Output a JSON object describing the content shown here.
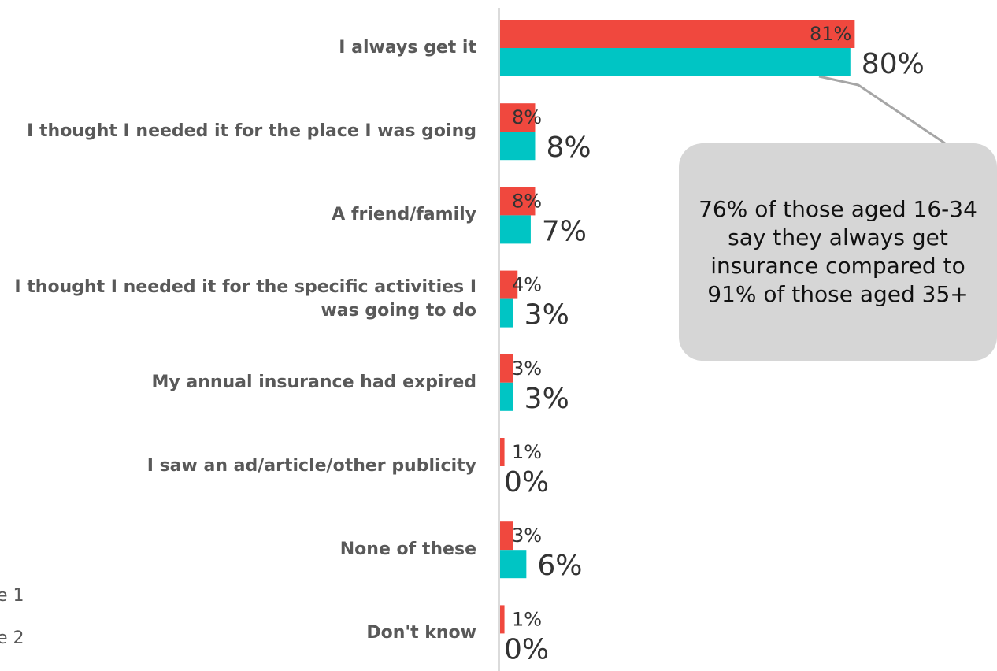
{
  "chart_data": {
    "type": "bar",
    "orientation": "horizontal",
    "categories": [
      "I always get it",
      "I thought I needed it for the place I was going",
      "A friend/family",
      "I thought I needed it for the specific activities I was going to do",
      "My annual insurance had expired",
      "I saw an ad/article/other publicity",
      "None of these",
      "Don't know"
    ],
    "series": [
      {
        "name": "e 1",
        "color": "#f0483e",
        "values": [
          81,
          8,
          8,
          4,
          3,
          1,
          3,
          1
        ],
        "value_labels": [
          "81%",
          "8%",
          "8%",
          "4%",
          "3%",
          "1%",
          "3%",
          "1%"
        ]
      },
      {
        "name": "e 2",
        "color": "#00c5c4",
        "values": [
          80,
          8,
          7,
          3,
          3,
          0,
          6,
          0
        ],
        "value_labels": [
          "80%",
          "8%",
          "7%",
          "3%",
          "3%",
          "0%",
          "6%",
          "0%"
        ]
      }
    ],
    "xlim": [
      0,
      100
    ],
    "annotation": "76% of those aged 16-34 say they always get insurance compared to 91% of those aged 35+"
  }
}
